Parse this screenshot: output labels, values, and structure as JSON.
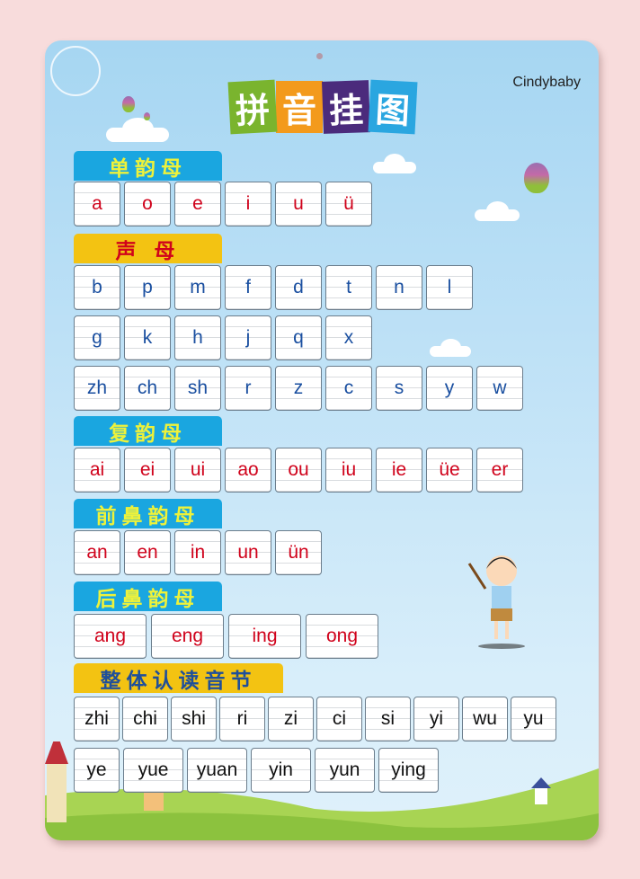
{
  "brand": "Cindybaby",
  "title": [
    "拼",
    "音",
    "挂",
    "图"
  ],
  "title_colors": [
    "#7ab42e",
    "#f39a1c",
    "#4b2b7c",
    "#2aa6e0"
  ],
  "colors": {
    "finals_text": "#d0021b",
    "initials_text": "#1a4fa0",
    "whole_text": "#111111",
    "header_blue": "#1aa6e0",
    "header_yellow": "#f3c312"
  },
  "sections": [
    {
      "header": "单韵母",
      "style": "blue",
      "text_color": "#eef23a",
      "rows": [
        [
          "a",
          "o",
          "e",
          "i",
          "u",
          "ü"
        ]
      ]
    },
    {
      "header": "声  母",
      "style": "yellow",
      "text_color": "#d0021b",
      "rows": [
        [
          "b",
          "p",
          "m",
          "f",
          "d",
          "t",
          "n",
          "l"
        ],
        [
          "g",
          "k",
          "h",
          "j",
          "q",
          "x"
        ],
        [
          "zh",
          "ch",
          "sh",
          "r",
          "z",
          "c",
          "s",
          "y",
          "w"
        ]
      ]
    },
    {
      "header": "复韵母",
      "style": "blue",
      "text_color": "#eef23a",
      "rows": [
        [
          "ai",
          "ei",
          "ui",
          "ao",
          "ou",
          "iu",
          "ie",
          "üe",
          "er"
        ]
      ]
    },
    {
      "header": "前鼻韵母",
      "style": "blue",
      "text_color": "#eef23a",
      "rows": [
        [
          "an",
          "en",
          "in",
          "un",
          "ün"
        ]
      ]
    },
    {
      "header": "后鼻韵母",
      "style": "blue",
      "text_color": "#eef23a",
      "rows": [
        [
          "ang",
          "eng",
          "ing",
          "ong"
        ]
      ]
    },
    {
      "header": "整体认读音节",
      "style": "yellow",
      "text_color": "#1f4f9a",
      "rows": [
        [
          "zhi",
          "chi",
          "shi",
          "ri",
          "zi",
          "ci",
          "si",
          "yi",
          "wu",
          "yu"
        ],
        [
          "ye",
          "yue",
          "yuan",
          "yin",
          "yun",
          "ying"
        ]
      ]
    }
  ]
}
